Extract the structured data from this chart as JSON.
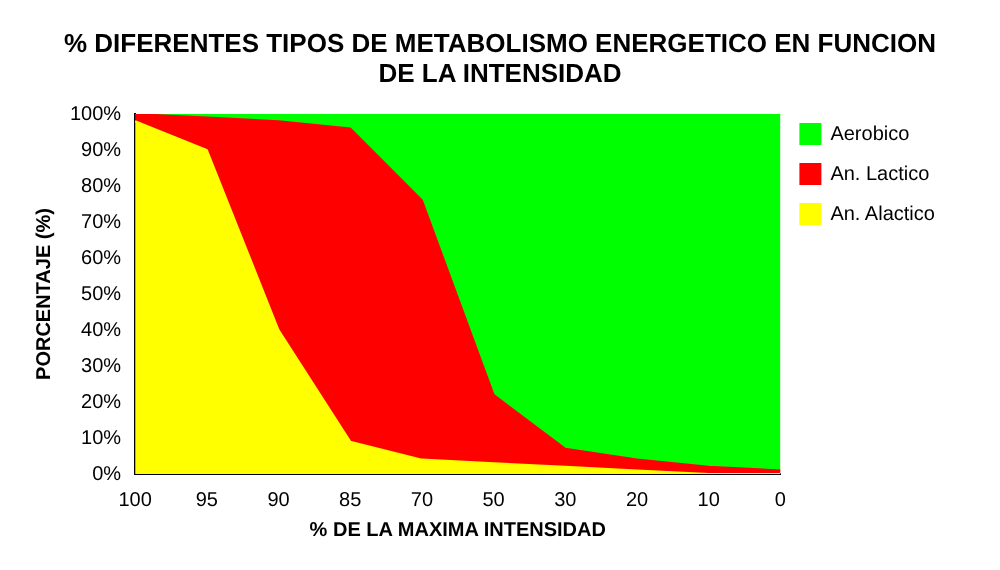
{
  "chart_data": {
    "type": "area",
    "stacked": true,
    "title": "% DIFERENTES TIPOS DE METABOLISMO ENERGETICO EN FUNCION DE LA INTENSIDAD",
    "xlabel": "% DE LA MAXIMA INTENSIDAD",
    "ylabel": "PORCENTAJE (%)",
    "categories": [
      "100",
      "95",
      "90",
      "85",
      "70",
      "50",
      "30",
      "20",
      "10",
      "0"
    ],
    "series": [
      {
        "name": "An. Alactico",
        "color": "#ffff00",
        "values": [
          98,
          90,
          40,
          9,
          4,
          3,
          2,
          1,
          0,
          0
        ]
      },
      {
        "name": "An. Lactico",
        "color": "#ff0000",
        "values": [
          2,
          9,
          58,
          87,
          72,
          19,
          5,
          3,
          2,
          1
        ]
      },
      {
        "name": "Aerobico",
        "color": "#00ff00",
        "values": [
          0,
          1,
          2,
          4,
          24,
          78,
          93,
          96,
          98,
          99
        ]
      }
    ],
    "ylim": [
      0,
      100
    ],
    "yticks": [
      {
        "value": 0,
        "label": "0%"
      },
      {
        "value": 10,
        "label": "10%"
      },
      {
        "value": 20,
        "label": "20%"
      },
      {
        "value": 30,
        "label": "30%"
      },
      {
        "value": 40,
        "label": "40%"
      },
      {
        "value": 50,
        "label": "50%"
      },
      {
        "value": 60,
        "label": "60%"
      },
      {
        "value": 70,
        "label": "70%"
      },
      {
        "value": 80,
        "label": "80%"
      },
      {
        "value": 90,
        "label": "90%"
      },
      {
        "value": 100,
        "label": "100%"
      }
    ],
    "grid": false,
    "legend": "top right"
  }
}
